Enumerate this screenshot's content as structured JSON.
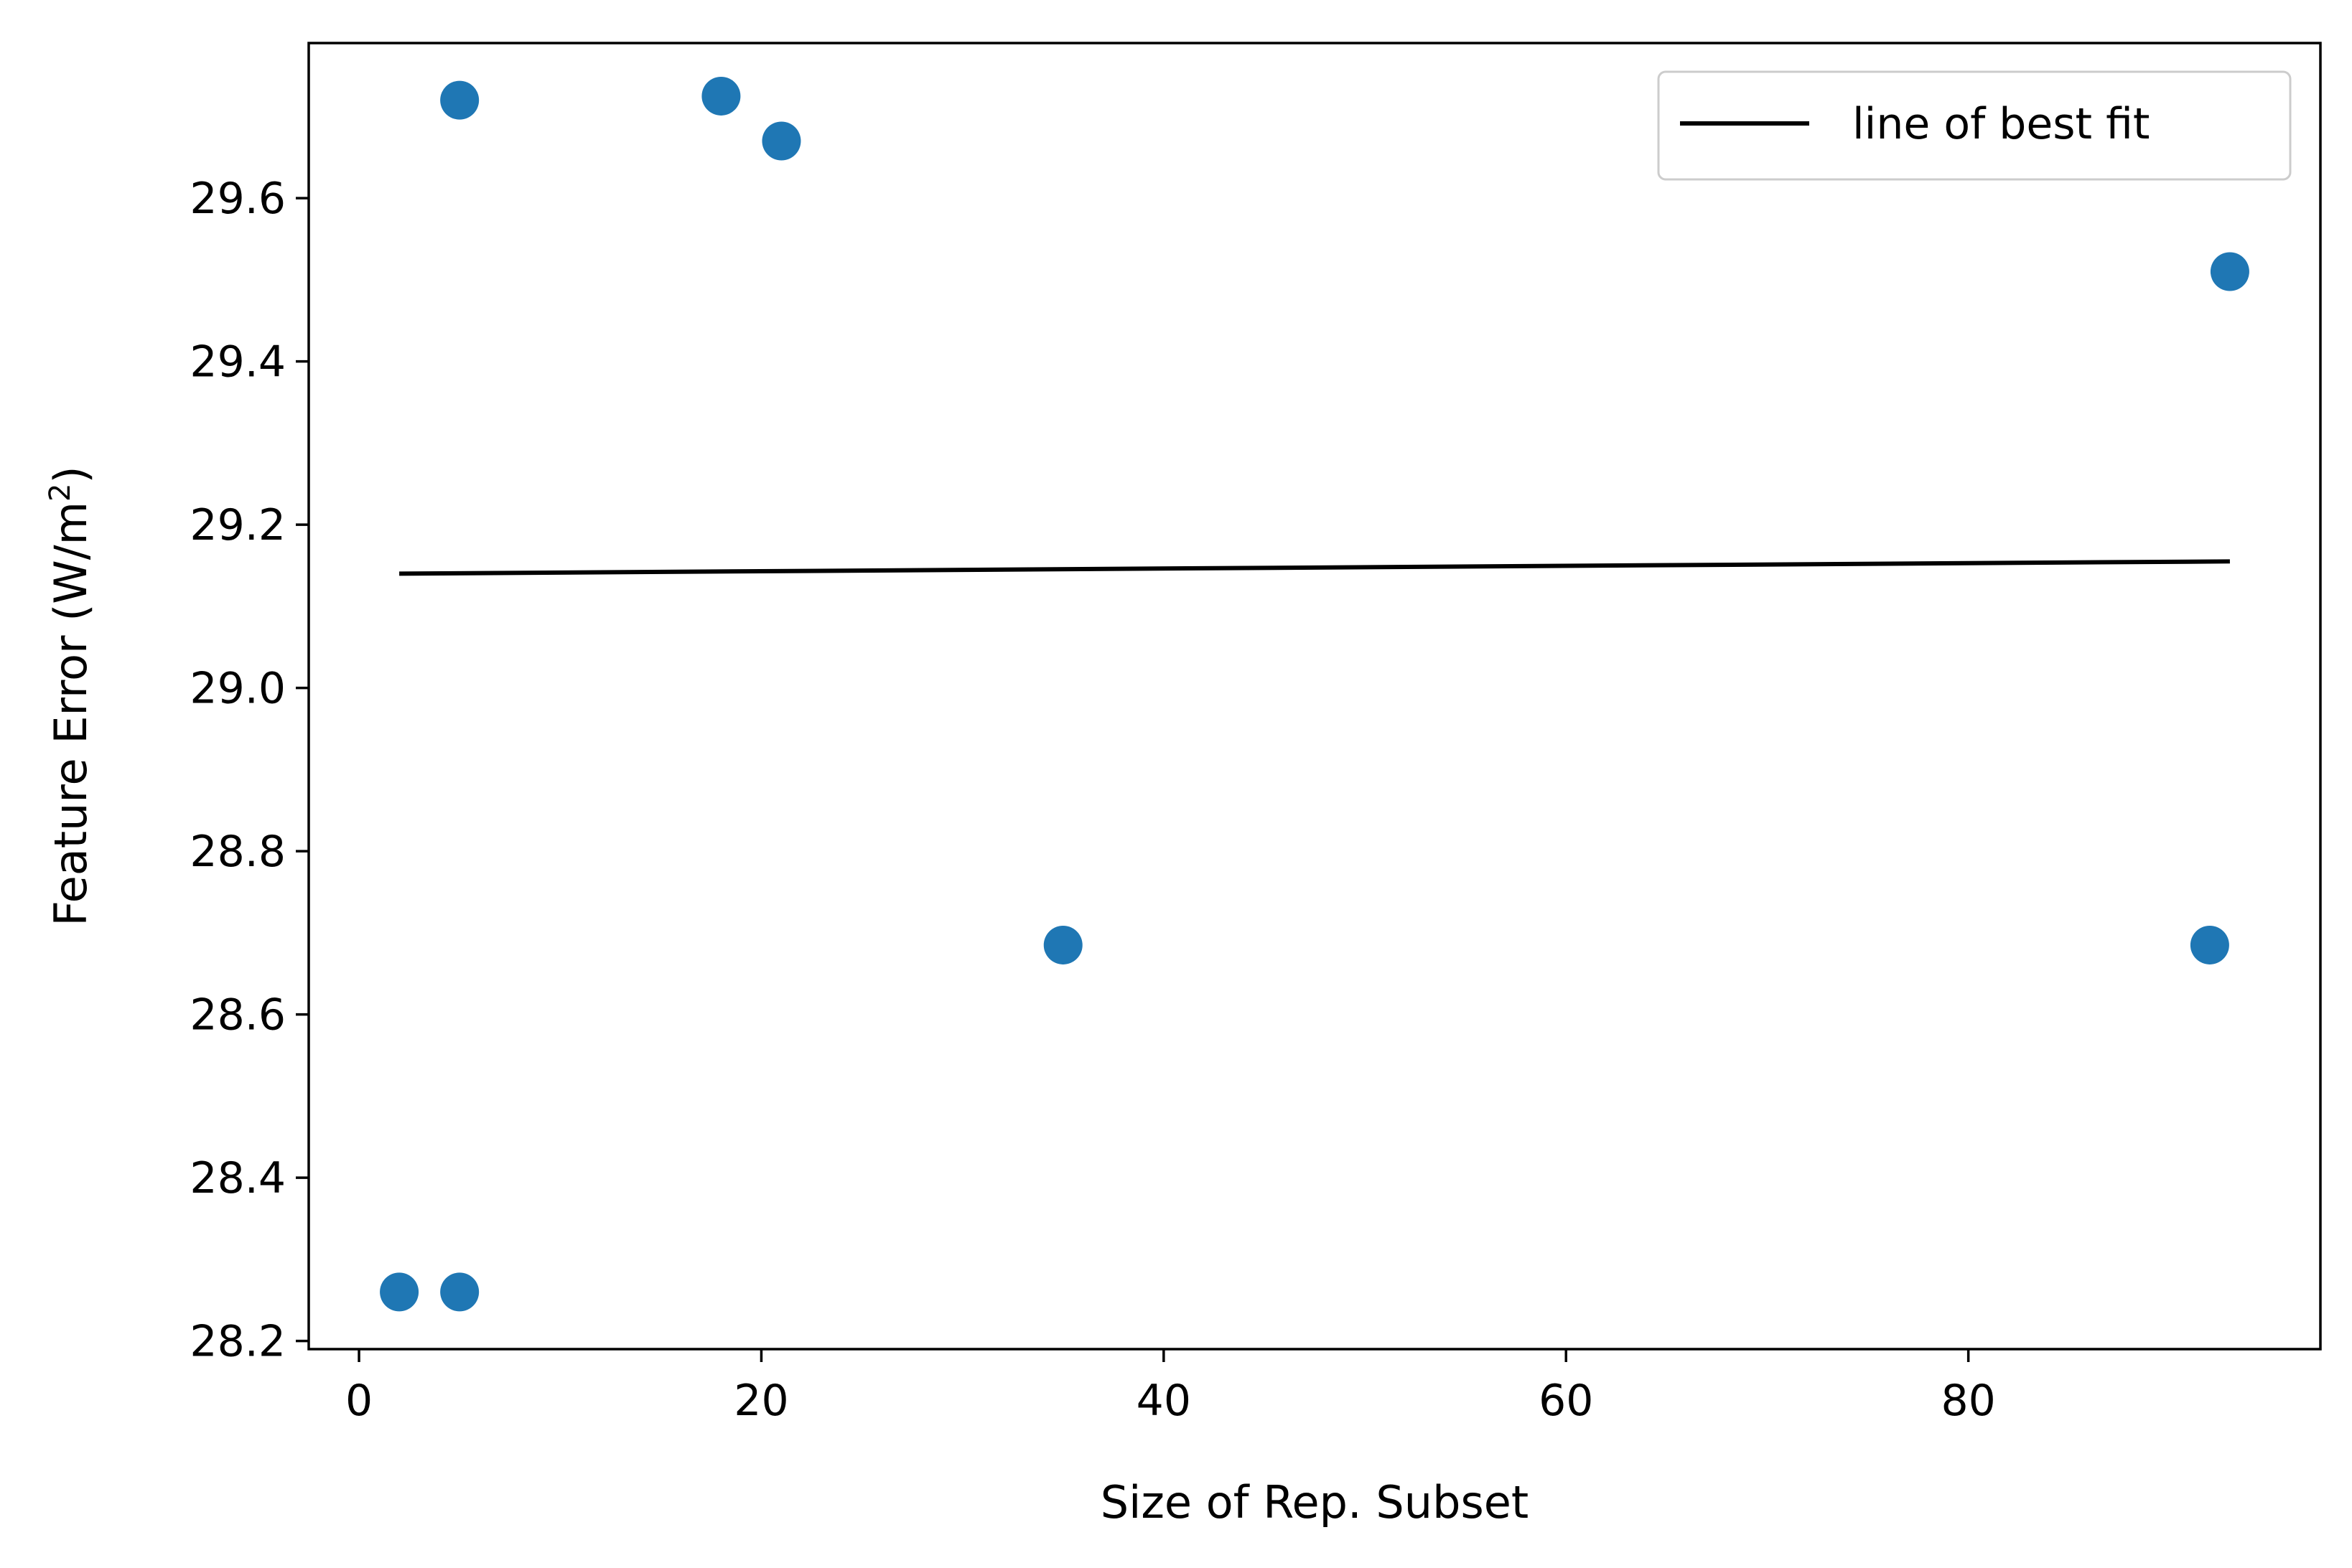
{
  "chart_data": {
    "type": "scatter",
    "title": "",
    "xlabel": "Size of Rep. Subset",
    "ylabel": "Feature Error (W/m",
    "ylabel_sup": "2",
    "ylabel_close": ")",
    "xlim": [
      -2.5,
      97.5
    ],
    "ylim": [
      28.19,
      29.79
    ],
    "xticks": [
      0,
      20,
      40,
      60,
      80
    ],
    "xtick_labels": [
      "0",
      "20",
      "40",
      "60",
      "80"
    ],
    "yticks": [
      28.2,
      28.4,
      28.6,
      28.8,
      29.0,
      29.2,
      29.4,
      29.6
    ],
    "ytick_labels": [
      "28.2",
      "28.4",
      "28.6",
      "28.8",
      "29.0",
      "29.2",
      "29.4",
      "29.6"
    ],
    "grid": false,
    "legend_position": "top-right",
    "series": [
      {
        "kind": "scatter",
        "color": "#1f77b4",
        "points": [
          {
            "x": 2,
            "y": 28.26
          },
          {
            "x": 5,
            "y": 28.26
          },
          {
            "x": 5,
            "y": 29.72
          },
          {
            "x": 18,
            "y": 29.725
          },
          {
            "x": 21,
            "y": 29.67
          },
          {
            "x": 35,
            "y": 28.685
          },
          {
            "x": 92,
            "y": 28.685
          },
          {
            "x": 93,
            "y": 29.51
          }
        ]
      },
      {
        "kind": "line",
        "name": "line of best fit",
        "color": "#000000",
        "points": [
          {
            "x": 2,
            "y": 29.14
          },
          {
            "x": 93,
            "y": 29.155
          }
        ]
      }
    ]
  }
}
